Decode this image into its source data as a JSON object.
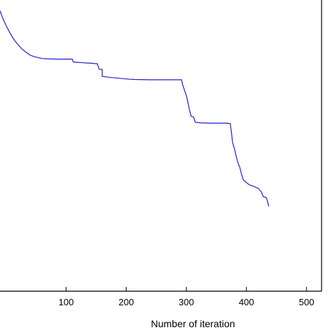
{
  "chart_data": {
    "type": "line",
    "title": "",
    "xlabel": "Number of iteration",
    "ylabel": "",
    "xlim": [
      -10,
      525
    ],
    "ylim": [
      0,
      1
    ],
    "x_ticks": [
      {
        "value": 100,
        "label": "100"
      },
      {
        "value": 200,
        "label": "200"
      },
      {
        "value": 300,
        "label": "300"
      },
      {
        "value": 400,
        "label": "400"
      },
      {
        "value": 500,
        "label": "500"
      }
    ],
    "grid": false,
    "series": [
      {
        "color": "#2020c8",
        "points": [
          [
            -10,
            0.963
          ],
          [
            -6,
            0.941
          ],
          [
            -2,
            0.922
          ],
          [
            2,
            0.905
          ],
          [
            6,
            0.889
          ],
          [
            10,
            0.875
          ],
          [
            14,
            0.862
          ],
          [
            18,
            0.852
          ],
          [
            22,
            0.842
          ],
          [
            26,
            0.833
          ],
          [
            30,
            0.826
          ],
          [
            35,
            0.818
          ],
          [
            40,
            0.811
          ],
          [
            46,
            0.806
          ],
          [
            52,
            0.803
          ],
          [
            60,
            0.799
          ],
          [
            70,
            0.798
          ],
          [
            85,
            0.797
          ],
          [
            110,
            0.797
          ],
          [
            112,
            0.787
          ],
          [
            125,
            0.785
          ],
          [
            140,
            0.783
          ],
          [
            152,
            0.781
          ],
          [
            155,
            0.762
          ],
          [
            160,
            0.762
          ],
          [
            160,
            0.738
          ],
          [
            170,
            0.735
          ],
          [
            185,
            0.732
          ],
          [
            205,
            0.728
          ],
          [
            215,
            0.727
          ],
          [
            240,
            0.726
          ],
          [
            280,
            0.726
          ],
          [
            292,
            0.726
          ],
          [
            294,
            0.708
          ],
          [
            297,
            0.69
          ],
          [
            300,
            0.672
          ],
          [
            302,
            0.655
          ],
          [
            304,
            0.634
          ],
          [
            306,
            0.616
          ],
          [
            308,
            0.601
          ],
          [
            312,
            0.598
          ],
          [
            315,
            0.58
          ],
          [
            325,
            0.578
          ],
          [
            340,
            0.577
          ],
          [
            365,
            0.577
          ],
          [
            373,
            0.576
          ],
          [
            375,
            0.547
          ],
          [
            377,
            0.51
          ],
          [
            380,
            0.49
          ],
          [
            383,
            0.463
          ],
          [
            386,
            0.44
          ],
          [
            389,
            0.425
          ],
          [
            392,
            0.4
          ],
          [
            395,
            0.382
          ],
          [
            400,
            0.373
          ],
          [
            405,
            0.365
          ],
          [
            412,
            0.36
          ],
          [
            420,
            0.353
          ],
          [
            425,
            0.34
          ],
          [
            428,
            0.325
          ],
          [
            433,
            0.321
          ],
          [
            435,
            0.31
          ],
          [
            437,
            0.291
          ]
        ]
      }
    ]
  }
}
